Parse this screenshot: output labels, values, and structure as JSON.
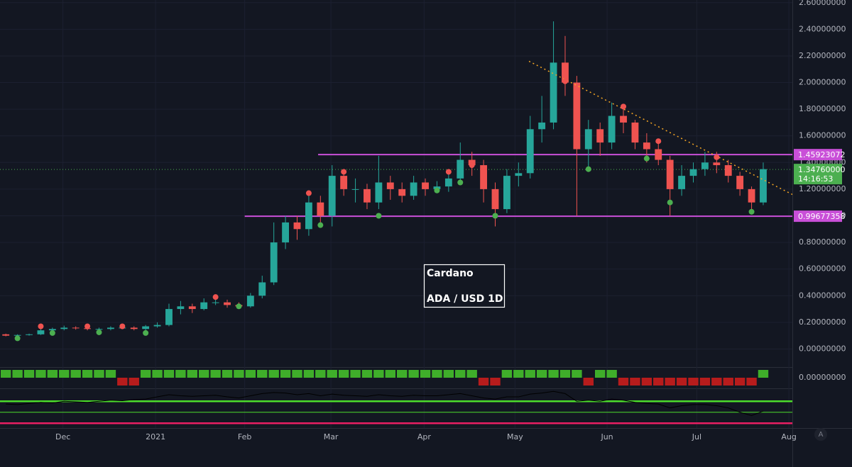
{
  "chart_data": {
    "type": "candlestick",
    "open": [
      0.11,
      0.1,
      0.105,
      0.11,
      0.14,
      0.15,
      0.16,
      0.155,
      0.15,
      0.15,
      0.16,
      0.16,
      0.15,
      0.17,
      0.18,
      0.3,
      0.32,
      0.3,
      0.35,
      0.35,
      0.33,
      0.32,
      0.4,
      0.5,
      0.8,
      0.95,
      0.9,
      1.1,
      1.0,
      1.3,
      1.2,
      1.2,
      1.1,
      1.25,
      1.2,
      1.15,
      1.25,
      1.2,
      1.22,
      1.28,
      1.42,
      1.38,
      1.2,
      1.05,
      1.3,
      1.32,
      1.65,
      1.7,
      2.15,
      2.0,
      1.5,
      1.65,
      1.55,
      1.75,
      1.7,
      1.55,
      1.5,
      1.42,
      1.2,
      1.3,
      1.35,
      1.4,
      1.38,
      1.3,
      1.2,
      1.1
    ],
    "high": [
      0.115,
      0.11,
      0.115,
      0.15,
      0.16,
      0.175,
      0.17,
      0.16,
      0.16,
      0.17,
      0.17,
      0.17,
      0.18,
      0.2,
      0.34,
      0.36,
      0.34,
      0.38,
      0.39,
      0.37,
      0.35,
      0.42,
      0.55,
      0.95,
      1.0,
      1.0,
      1.18,
      1.15,
      1.38,
      1.33,
      1.28,
      1.24,
      1.45,
      1.3,
      1.25,
      1.3,
      1.28,
      1.26,
      1.35,
      1.55,
      1.48,
      1.42,
      1.25,
      1.35,
      1.4,
      1.75,
      1.9,
      2.46,
      2.35,
      2.05,
      1.72,
      1.7,
      1.85,
      1.8,
      1.72,
      1.62,
      1.55,
      1.45,
      1.38,
      1.4,
      1.48,
      1.48,
      1.42,
      1.33,
      1.22,
      1.4
    ],
    "low": [
      0.095,
      0.095,
      0.1,
      0.105,
      0.13,
      0.14,
      0.145,
      0.14,
      0.14,
      0.14,
      0.15,
      0.14,
      0.14,
      0.16,
      0.17,
      0.26,
      0.27,
      0.29,
      0.33,
      0.31,
      0.3,
      0.31,
      0.38,
      0.48,
      0.75,
      0.82,
      0.85,
      0.95,
      0.92,
      1.15,
      1.1,
      1.05,
      1.05,
      1.12,
      1.1,
      1.12,
      1.15,
      1.17,
      1.18,
      1.26,
      1.3,
      1.1,
      0.92,
      1.02,
      1.22,
      1.28,
      1.55,
      1.65,
      1.9,
      1.0,
      1.35,
      1.45,
      1.5,
      1.62,
      1.5,
      1.4,
      1.38,
      1.0,
      1.15,
      1.25,
      1.3,
      1.32,
      1.25,
      1.15,
      1.02,
      1.08
    ],
    "close": [
      0.1,
      0.105,
      0.11,
      0.14,
      0.15,
      0.16,
      0.155,
      0.15,
      0.15,
      0.16,
      0.16,
      0.15,
      0.17,
      0.18,
      0.3,
      0.32,
      0.3,
      0.35,
      0.35,
      0.33,
      0.32,
      0.4,
      0.5,
      0.8,
      0.95,
      0.9,
      1.1,
      1.0,
      1.3,
      1.2,
      1.2,
      1.1,
      1.25,
      1.2,
      1.15,
      1.25,
      1.2,
      1.22,
      1.28,
      1.42,
      1.38,
      1.2,
      1.05,
      1.3,
      1.32,
      1.65,
      1.7,
      2.15,
      2.0,
      1.5,
      1.65,
      1.55,
      1.75,
      1.7,
      1.55,
      1.5,
      1.42,
      1.2,
      1.3,
      1.35,
      1.4,
      1.38,
      1.3,
      1.2,
      1.1,
      1.35
    ],
    "up_color": "#26a69a",
    "down_color": "#ef5350",
    "xlim": [
      -0.5,
      67.5
    ],
    "xticks": [
      {
        "value": 4.9,
        "label": "Dec"
      },
      {
        "value": 12.85,
        "label": "2021"
      },
      {
        "value": 20.5,
        "label": "Feb"
      },
      {
        "value": 27.9,
        "label": "Mar"
      },
      {
        "value": 35.9,
        "label": "Apr"
      },
      {
        "value": 43.7,
        "label": "May"
      },
      {
        "value": 51.6,
        "label": "Jun"
      },
      {
        "value": 59.3,
        "label": "Jul"
      },
      {
        "value": 67.2,
        "label": "Aug"
      }
    ],
    "ylim": [
      -0.12,
      2.62
    ],
    "yticks": [
      {
        "value": 0,
        "label": "0.00000000"
      },
      {
        "value": 0.2,
        "label": "0.20000000"
      },
      {
        "value": 0.4,
        "label": "0.40000000"
      },
      {
        "value": 0.6,
        "label": "0.60000000"
      },
      {
        "value": 0.8,
        "label": "0.80000000"
      },
      {
        "value": 1.0,
        "label": "1.00000000"
      },
      {
        "value": 1.2,
        "label": "1.20000000"
      },
      {
        "value": 1.4,
        "label": "1.40000000"
      },
      {
        "value": 1.6,
        "label": "1.60000000"
      },
      {
        "value": 1.8,
        "label": "1.80000000"
      },
      {
        "value": 2.0,
        "label": "2.00000000"
      },
      {
        "value": 2.2,
        "label": "2.20000000"
      },
      {
        "value": 2.4,
        "label": "2.40000000"
      },
      {
        "value": 2.6,
        "label": "2.60000000"
      }
    ],
    "grid": true,
    "hlines": [
      {
        "value": 1.45923072,
        "start_x": 26.8,
        "color": "#c94fd8"
      },
      {
        "value": 0.99677358,
        "start_x": 20.5,
        "color": "#c94fd8"
      }
    ],
    "current_price": {
      "value": 1.3476,
      "label": "1.34760000",
      "countdown": "14:16:53",
      "color": "#4caf50"
    },
    "trendline": {
      "x": [
        44.9,
        67.5
      ],
      "y": [
        2.16,
        1.16
      ],
      "color": "#f5a623"
    },
    "buy_signals": {
      "x": [
        1,
        4,
        8,
        12,
        20,
        27,
        32,
        37,
        39,
        42,
        50,
        55,
        57,
        64
      ],
      "y": [
        0.08,
        0.12,
        0.125,
        0.12,
        0.32,
        0.93,
        1.0,
        1.19,
        1.25,
        1.0,
        1.35,
        1.43,
        1.1,
        1.03
      ],
      "color": "#4caf50"
    },
    "sell_signals": {
      "x": [
        3,
        7,
        10,
        18,
        26,
        29,
        38,
        40,
        48,
        53,
        56,
        61
      ],
      "y": [
        0.17,
        0.17,
        0.17,
        0.39,
        1.17,
        1.33,
        1.33,
        1.38,
        2.01,
        1.82,
        1.56,
        1.44
      ],
      "color": "#ef5350"
    },
    "trend_signal": [
      1,
      1,
      1,
      1,
      1,
      1,
      1,
      1,
      1,
      1,
      -1,
      -1,
      1,
      1,
      1,
      1,
      1,
      1,
      1,
      1,
      1,
      1,
      1,
      1,
      1,
      1,
      1,
      1,
      1,
      1,
      1,
      1,
      1,
      1,
      1,
      1,
      1,
      1,
      1,
      1,
      1,
      -1,
      -1,
      1,
      1,
      1,
      1,
      1,
      1,
      1,
      -1,
      1,
      1,
      -1,
      -1,
      -1,
      -1,
      -1,
      -1,
      -1,
      -1,
      -1,
      -1,
      -1,
      -1,
      1
    ],
    "trend_label": {
      "value": 0,
      "label": "0.00000000"
    },
    "oscillator": {
      "values": [
        65,
        64,
        66,
        68,
        67,
        70,
        69,
        68,
        70,
        72,
        71,
        73,
        74,
        78,
        82,
        80,
        79,
        80,
        81,
        78,
        76,
        80,
        84,
        86,
        85,
        82,
        84,
        80,
        83,
        81,
        80,
        79,
        82,
        80,
        79,
        81,
        80,
        80,
        82,
        84,
        80,
        76,
        74,
        78,
        78,
        83,
        85,
        88,
        84,
        70,
        72,
        70,
        74,
        72,
        68,
        66,
        65,
        58,
        62,
        64,
        64,
        62,
        58,
        50,
        44,
        52
      ],
      "ylim": [
        0,
        100
      ],
      "levels": [
        70,
        50,
        30
      ],
      "level_colors": [
        "#4cdc2c",
        "#4cdc2c",
        "#e91e63"
      ],
      "line_color": "#000000"
    },
    "annotation": {
      "title": "Cardano",
      "subtitle": "ADA / USD 1D"
    },
    "button": "A"
  }
}
